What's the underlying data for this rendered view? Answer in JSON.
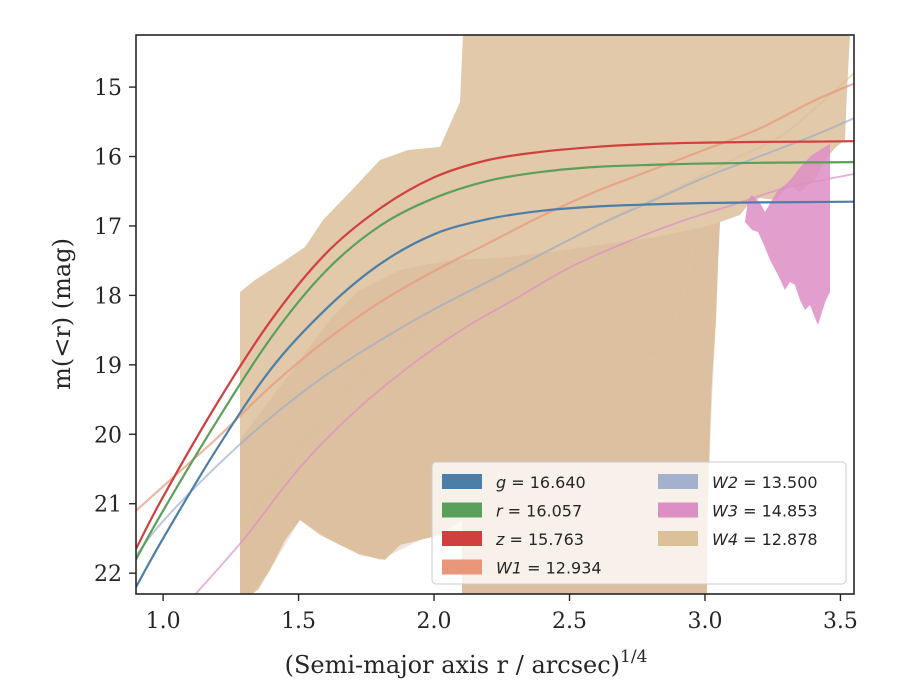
{
  "chart_data": {
    "type": "line",
    "xlabel": "(Semi-major axis r / arcsec)",
    "xlabel_sup": "1/4",
    "ylabel": "m(<r) (mag)",
    "xlim": [
      0.9,
      3.55
    ],
    "ylim": [
      22.3,
      14.25
    ],
    "y_inverted": true,
    "x_ticks": [
      1.0,
      1.5,
      2.0,
      2.5,
      3.0,
      3.5
    ],
    "x_tick_labels": [
      "1.0",
      "1.5",
      "2.0",
      "2.5",
      "3.0",
      "3.5"
    ],
    "y_ticks": [
      15,
      16,
      17,
      18,
      19,
      20,
      21,
      22
    ],
    "y_tick_labels": [
      "15",
      "16",
      "17",
      "18",
      "19",
      "20",
      "21",
      "22"
    ],
    "grid": false,
    "legend_position": "lower-right",
    "series": [
      {
        "name": "g = 16.640",
        "color": "#4c7ea8",
        "fill_alpha": 0.3,
        "x": [
          0.9,
          1.0,
          1.2,
          1.4,
          1.6,
          1.8,
          2.0,
          2.2,
          2.4,
          2.6,
          2.8,
          3.0,
          3.2,
          3.4,
          3.55
        ],
        "y": [
          22.2,
          21.5,
          20.2,
          19.05,
          18.2,
          17.55,
          17.12,
          16.9,
          16.78,
          16.72,
          16.69,
          16.67,
          16.66,
          16.655,
          16.65
        ]
      },
      {
        "name": "r = 16.057",
        "color": "#5aa05a",
        "fill_alpha": 0.3,
        "x": [
          0.9,
          1.0,
          1.2,
          1.4,
          1.6,
          1.8,
          2.0,
          2.2,
          2.4,
          2.6,
          2.8,
          3.0,
          3.2,
          3.4,
          3.55
        ],
        "y": [
          21.8,
          21.1,
          19.8,
          18.6,
          17.65,
          17.0,
          16.6,
          16.35,
          16.22,
          16.15,
          16.12,
          16.1,
          16.09,
          16.085,
          16.08
        ]
      },
      {
        "name": "z = 15.763",
        "color": "#d0403e",
        "fill_alpha": 0.3,
        "x": [
          0.9,
          1.0,
          1.2,
          1.4,
          1.6,
          1.8,
          2.0,
          2.2,
          2.4,
          2.6,
          2.8,
          3.0,
          3.2,
          3.4,
          3.55
        ],
        "y": [
          21.65,
          20.9,
          19.55,
          18.35,
          17.4,
          16.75,
          16.3,
          16.05,
          15.93,
          15.86,
          15.82,
          15.8,
          15.79,
          15.785,
          15.78
        ]
      },
      {
        "name": "W1 = 12.934",
        "color": "#e9977a",
        "fill_alpha": 0.3,
        "x": [
          0.9,
          1.0,
          1.2,
          1.4,
          1.6,
          1.8,
          2.0,
          2.2,
          2.4,
          2.6,
          2.8,
          3.0,
          3.2,
          3.4,
          3.55
        ],
        "y": [
          21.1,
          20.75,
          20.05,
          19.3,
          18.65,
          18.1,
          17.65,
          17.25,
          16.85,
          16.5,
          16.2,
          15.9,
          15.6,
          15.2,
          14.95
        ]
      },
      {
        "name": "W2 = 13.500",
        "color": "#9aaacb",
        "fill_alpha": 0.4,
        "x": [
          0.9,
          1.0,
          1.2,
          1.4,
          1.6,
          1.8,
          2.0,
          2.2,
          2.4,
          2.6,
          2.8,
          3.0,
          3.2,
          3.4,
          3.55
        ],
        "y": [
          21.75,
          21.25,
          20.45,
          19.75,
          19.15,
          18.65,
          18.2,
          17.8,
          17.4,
          17.0,
          16.65,
          16.3,
          16.0,
          15.7,
          15.45
        ]
      },
      {
        "name": "W3 = 14.853",
        "color": "#dd8ec4",
        "fill_alpha": 0.85,
        "x": [
          1.12,
          1.3,
          1.5,
          1.7,
          1.9,
          2.1,
          2.3,
          2.5,
          2.7,
          2.9,
          3.1,
          3.3,
          3.55
        ],
        "y": [
          22.3,
          21.5,
          20.5,
          19.7,
          19.05,
          18.5,
          18.05,
          17.6,
          17.25,
          16.95,
          16.7,
          16.45,
          16.25
        ]
      },
      {
        "name": "W4 = 12.878",
        "color": "#dcc09a",
        "fill_alpha": 0.85,
        "x": [
          1.3,
          1.5,
          1.7,
          1.9,
          2.1,
          2.3,
          2.5,
          2.7,
          2.9,
          3.1,
          3.3,
          3.55
        ],
        "y": [
          21.3,
          20.2,
          19.3,
          18.6,
          18.05,
          17.6,
          17.2,
          16.8,
          16.45,
          16.05,
          15.65,
          14.8
        ]
      }
    ]
  }
}
